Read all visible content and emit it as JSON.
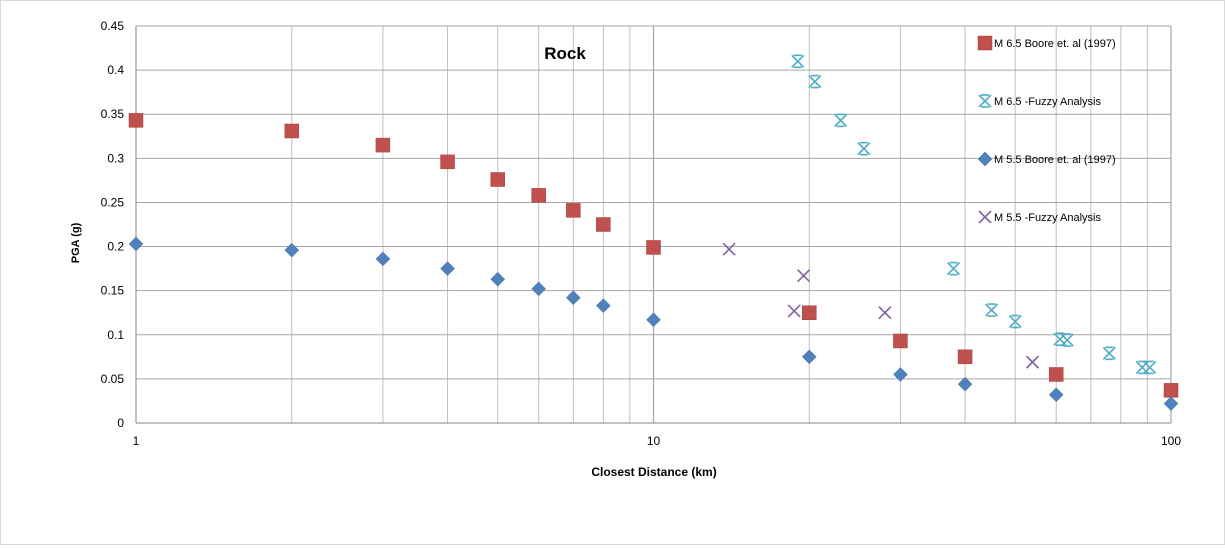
{
  "chart_data": {
    "type": "scatter",
    "title": "Rock",
    "xlabel": "Closest Distance (km)",
    "ylabel": "PGA (g)",
    "x_scale": "log",
    "xlim": [
      1,
      100
    ],
    "ylim": [
      0,
      0.45
    ],
    "x_ticks": [
      1,
      10,
      100
    ],
    "x_tick_labels": [
      "1",
      "10",
      "100"
    ],
    "y_ticks": [
      0,
      0.05,
      0.1,
      0.15,
      0.2,
      0.25,
      0.3,
      0.35,
      0.4,
      0.45
    ],
    "y_tick_labels": [
      "0",
      "0.05",
      "0.1",
      "0.15",
      "0.2",
      "0.25",
      "0.3",
      "0.35",
      "0.4",
      "0.45"
    ],
    "grid": "vertical-log-minor-and-horizontal",
    "legend_position": "right",
    "series": [
      {
        "name": "M 6.5 Boore et. al (1997)",
        "marker": "square",
        "color": "#C0504D",
        "points": [
          [
            1,
            0.343
          ],
          [
            2,
            0.331
          ],
          [
            3,
            0.315
          ],
          [
            4,
            0.296
          ],
          [
            5,
            0.276
          ],
          [
            6,
            0.258
          ],
          [
            7,
            0.241
          ],
          [
            8,
            0.225
          ],
          [
            10,
            0.199
          ],
          [
            20,
            0.125
          ],
          [
            30,
            0.093
          ],
          [
            40,
            0.075
          ],
          [
            60,
            0.055
          ],
          [
            100,
            0.037
          ]
        ]
      },
      {
        "name": "M 6.5 -Fuzzy Analysis",
        "marker": "star",
        "color": "#4BACC6",
        "points": [
          [
            19,
            0.41
          ],
          [
            20.5,
            0.387
          ],
          [
            23,
            0.343
          ],
          [
            25.5,
            0.311
          ],
          [
            38,
            0.175
          ],
          [
            45,
            0.128
          ],
          [
            50,
            0.115
          ],
          [
            61,
            0.095
          ],
          [
            63,
            0.094
          ],
          [
            76,
            0.079
          ],
          [
            88,
            0.063
          ],
          [
            91,
            0.063
          ]
        ]
      },
      {
        "name": "M 5.5 Boore et. al (1997)",
        "marker": "diamond",
        "color": "#4F81BD",
        "points": [
          [
            1,
            0.203
          ],
          [
            2,
            0.196
          ],
          [
            3,
            0.186
          ],
          [
            4,
            0.175
          ],
          [
            5,
            0.163
          ],
          [
            6,
            0.152
          ],
          [
            7,
            0.142
          ],
          [
            8,
            0.133
          ],
          [
            10,
            0.117
          ],
          [
            20,
            0.075
          ],
          [
            30,
            0.055
          ],
          [
            40,
            0.044
          ],
          [
            60,
            0.032
          ],
          [
            100,
            0.022
          ]
        ]
      },
      {
        "name": "M 5.5 -Fuzzy Analysis",
        "marker": "x",
        "color": "#8064A2",
        "points": [
          [
            14,
            0.197
          ],
          [
            19.5,
            0.167
          ],
          [
            18.7,
            0.127
          ],
          [
            28,
            0.125
          ],
          [
            54,
            0.069
          ]
        ]
      }
    ]
  }
}
